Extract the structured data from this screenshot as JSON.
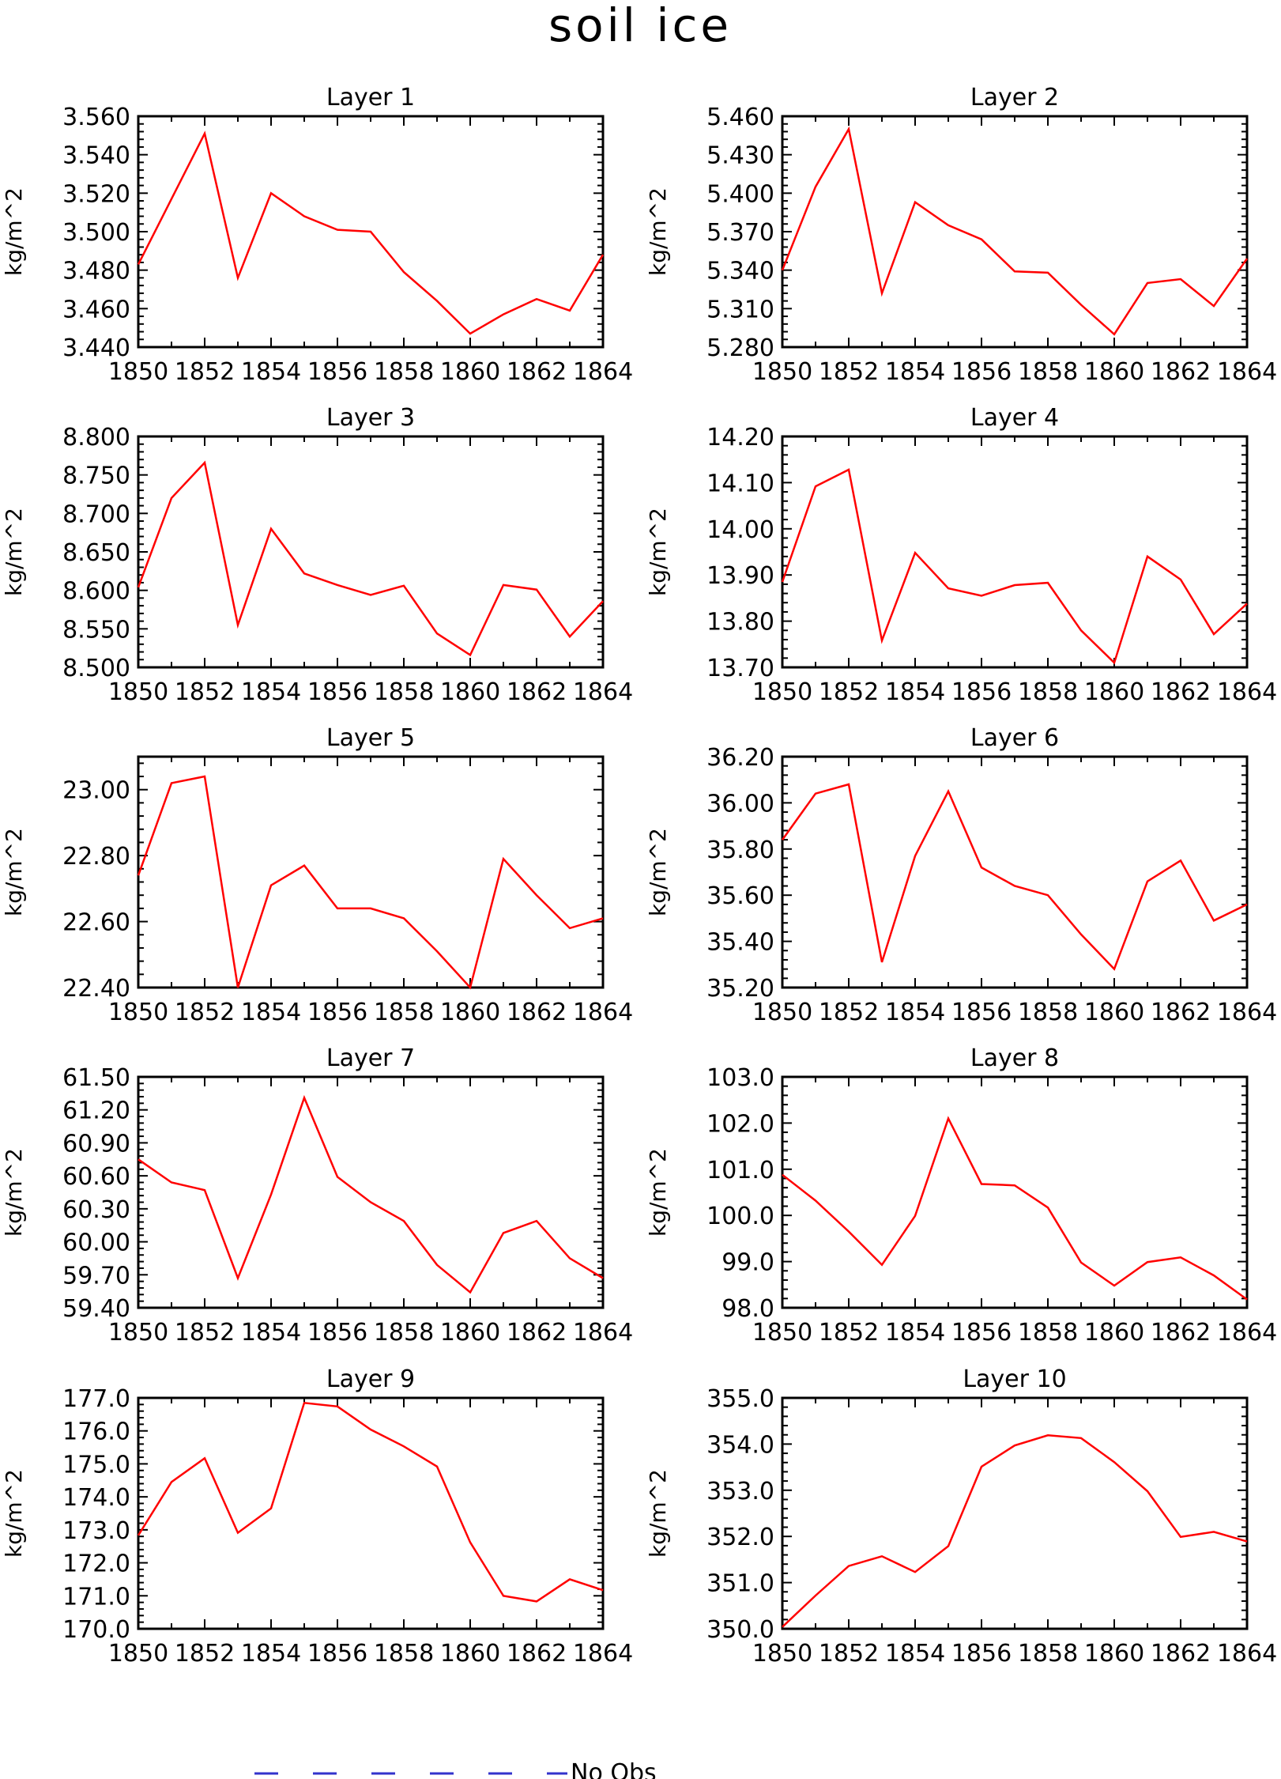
{
  "figure": {
    "title": "soil ice",
    "line_color": "#ff0000",
    "legend_color": "#3333cc"
  },
  "legend": {
    "label": "No Obs"
  },
  "chart_data": [
    {
      "type": "line",
      "title": "Layer 1",
      "xlabel": "",
      "ylabel": "kg/m^2",
      "x": [
        1850,
        1851,
        1852,
        1853,
        1854,
        1855,
        1856,
        1857,
        1858,
        1859,
        1860,
        1861,
        1862,
        1863,
        1864
      ],
      "x_ticks": [
        "1850",
        "1852",
        "1854",
        "1856",
        "1858",
        "1860",
        "1862",
        "1864"
      ],
      "ylim": [
        3.44,
        3.56
      ],
      "y_ticks": [
        "3.440",
        "3.460",
        "3.480",
        "3.500",
        "3.520",
        "3.540",
        "3.560"
      ],
      "series": [
        {
          "values": [
            3.483,
            3.517,
            3.551,
            3.476,
            3.52,
            3.508,
            3.501,
            3.5,
            3.479,
            3.464,
            3.447,
            3.457,
            3.465,
            3.459,
            3.488
          ]
        }
      ]
    },
    {
      "type": "line",
      "title": "Layer 2",
      "xlabel": "",
      "ylabel": "kg/m^2",
      "x": [
        1850,
        1851,
        1852,
        1853,
        1854,
        1855,
        1856,
        1857,
        1858,
        1859,
        1860,
        1861,
        1862,
        1863,
        1864
      ],
      "x_ticks": [
        "1850",
        "1852",
        "1854",
        "1856",
        "1858",
        "1860",
        "1862",
        "1864"
      ],
      "ylim": [
        5.28,
        5.46
      ],
      "y_ticks": [
        "5.280",
        "5.310",
        "5.340",
        "5.370",
        "5.400",
        "5.430",
        "5.460"
      ],
      "series": [
        {
          "values": [
            5.34,
            5.405,
            5.45,
            5.322,
            5.393,
            5.375,
            5.364,
            5.339,
            5.338,
            5.313,
            5.29,
            5.33,
            5.333,
            5.312,
            5.349
          ]
        }
      ]
    },
    {
      "type": "line",
      "title": "Layer 3",
      "xlabel": "",
      "ylabel": "kg/m^2",
      "x": [
        1850,
        1851,
        1852,
        1853,
        1854,
        1855,
        1856,
        1857,
        1858,
        1859,
        1860,
        1861,
        1862,
        1863,
        1864
      ],
      "x_ticks": [
        "1850",
        "1852",
        "1854",
        "1856",
        "1858",
        "1860",
        "1862",
        "1864"
      ],
      "ylim": [
        8.5,
        8.8
      ],
      "y_ticks": [
        "8.500",
        "8.550",
        "8.600",
        "8.650",
        "8.700",
        "8.750",
        "8.800"
      ],
      "series": [
        {
          "values": [
            8.604,
            8.72,
            8.766,
            8.555,
            8.68,
            8.622,
            8.607,
            8.594,
            8.606,
            8.544,
            8.516,
            8.607,
            8.601,
            8.54,
            8.586
          ]
        }
      ]
    },
    {
      "type": "line",
      "title": "Layer 4",
      "xlabel": "",
      "ylabel": "kg/m^2",
      "x": [
        1850,
        1851,
        1852,
        1853,
        1854,
        1855,
        1856,
        1857,
        1858,
        1859,
        1860,
        1861,
        1862,
        1863,
        1864
      ],
      "x_ticks": [
        "1850",
        "1852",
        "1854",
        "1856",
        "1858",
        "1860",
        "1862",
        "1864"
      ],
      "ylim": [
        13.7,
        14.2
      ],
      "y_ticks": [
        "13.70",
        "13.80",
        "13.90",
        "14.00",
        "14.10",
        "14.20"
      ],
      "series": [
        {
          "values": [
            13.885,
            14.092,
            14.128,
            13.758,
            13.948,
            13.871,
            13.855,
            13.878,
            13.883,
            13.78,
            13.71,
            13.94,
            13.89,
            13.772,
            13.838
          ]
        }
      ]
    },
    {
      "type": "line",
      "title": "Layer 5",
      "xlabel": "",
      "ylabel": "kg/m^2",
      "x": [
        1850,
        1851,
        1852,
        1853,
        1854,
        1855,
        1856,
        1857,
        1858,
        1859,
        1860,
        1861,
        1862,
        1863,
        1864
      ],
      "x_ticks": [
        "1850",
        "1852",
        "1854",
        "1856",
        "1858",
        "1860",
        "1862",
        "1864"
      ],
      "ylim": [
        22.4,
        23.1
      ],
      "y_ticks": [
        "22.40",
        "22.60",
        "22.80",
        "23.00"
      ],
      "series": [
        {
          "values": [
            22.74,
            23.02,
            23.04,
            22.4,
            22.71,
            22.77,
            22.64,
            22.64,
            22.61,
            22.51,
            22.4,
            22.79,
            22.68,
            22.58,
            22.61
          ]
        }
      ]
    },
    {
      "type": "line",
      "title": "Layer 6",
      "xlabel": "",
      "ylabel": "kg/m^2",
      "x": [
        1850,
        1851,
        1852,
        1853,
        1854,
        1855,
        1856,
        1857,
        1858,
        1859,
        1860,
        1861,
        1862,
        1863,
        1864
      ],
      "x_ticks": [
        "1850",
        "1852",
        "1854",
        "1856",
        "1858",
        "1860",
        "1862",
        "1864"
      ],
      "ylim": [
        35.2,
        36.2
      ],
      "y_ticks": [
        "35.20",
        "35.40",
        "35.60",
        "35.80",
        "36.00",
        "36.20"
      ],
      "series": [
        {
          "values": [
            35.84,
            36.04,
            36.08,
            35.31,
            35.77,
            36.05,
            35.72,
            35.64,
            35.6,
            35.43,
            35.28,
            35.66,
            35.75,
            35.49,
            35.56
          ]
        }
      ]
    },
    {
      "type": "line",
      "title": "Layer 7",
      "xlabel": "",
      "ylabel": "kg/m^2",
      "x": [
        1850,
        1851,
        1852,
        1853,
        1854,
        1855,
        1856,
        1857,
        1858,
        1859,
        1860,
        1861,
        1862,
        1863,
        1864
      ],
      "x_ticks": [
        "1850",
        "1852",
        "1854",
        "1856",
        "1858",
        "1860",
        "1862",
        "1864"
      ],
      "ylim": [
        59.4,
        61.5
      ],
      "y_ticks": [
        "59.40",
        "59.70",
        "60.00",
        "60.30",
        "60.60",
        "60.90",
        "61.20",
        "61.50"
      ],
      "series": [
        {
          "values": [
            60.75,
            60.54,
            60.47,
            59.67,
            60.43,
            61.31,
            60.59,
            60.36,
            60.19,
            59.79,
            59.54,
            60.08,
            60.19,
            59.85,
            59.67
          ]
        }
      ]
    },
    {
      "type": "line",
      "title": "Layer 8",
      "xlabel": "",
      "ylabel": "kg/m^2",
      "x": [
        1850,
        1851,
        1852,
        1853,
        1854,
        1855,
        1856,
        1857,
        1858,
        1859,
        1860,
        1861,
        1862,
        1863,
        1864
      ],
      "x_ticks": [
        "1850",
        "1852",
        "1854",
        "1856",
        "1858",
        "1860",
        "1862",
        "1864"
      ],
      "ylim": [
        98.0,
        103.0
      ],
      "y_ticks": [
        "98.0",
        "99.0",
        "100.0",
        "101.0",
        "102.0",
        "103.0"
      ],
      "series": [
        {
          "values": [
            100.88,
            100.32,
            99.65,
            98.93,
            99.99,
            102.1,
            100.68,
            100.65,
            100.17,
            98.98,
            98.48,
            98.99,
            99.09,
            98.7,
            98.18
          ]
        }
      ]
    },
    {
      "type": "line",
      "title": "Layer 9",
      "xlabel": "",
      "ylabel": "kg/m^2",
      "x": [
        1850,
        1851,
        1852,
        1853,
        1854,
        1855,
        1856,
        1857,
        1858,
        1859,
        1860,
        1861,
        1862,
        1863,
        1864
      ],
      "x_ticks": [
        "1850",
        "1852",
        "1854",
        "1856",
        "1858",
        "1860",
        "1862",
        "1864"
      ],
      "ylim": [
        170.0,
        177.0
      ],
      "y_ticks": [
        "170.0",
        "171.0",
        "172.0",
        "173.0",
        "174.0",
        "175.0",
        "176.0",
        "177.0"
      ],
      "series": [
        {
          "values": [
            172.83,
            174.45,
            175.17,
            172.91,
            173.65,
            176.85,
            176.74,
            176.04,
            175.53,
            174.92,
            172.62,
            171.0,
            170.83,
            171.5,
            171.17
          ]
        }
      ]
    },
    {
      "type": "line",
      "title": "Layer 10",
      "xlabel": "",
      "ylabel": "kg/m^2",
      "x": [
        1850,
        1851,
        1852,
        1853,
        1854,
        1855,
        1856,
        1857,
        1858,
        1859,
        1860,
        1861,
        1862,
        1863,
        1864
      ],
      "x_ticks": [
        "1850",
        "1852",
        "1854",
        "1856",
        "1858",
        "1860",
        "1862",
        "1864"
      ],
      "ylim": [
        350.0,
        355.0
      ],
      "y_ticks": [
        "350.0",
        "351.0",
        "352.0",
        "353.0",
        "354.0",
        "355.0"
      ],
      "series": [
        {
          "values": [
            350.04,
            350.72,
            351.36,
            351.57,
            351.23,
            351.79,
            353.51,
            353.97,
            354.19,
            354.13,
            353.61,
            352.98,
            351.99,
            352.1,
            351.89
          ]
        }
      ]
    }
  ]
}
